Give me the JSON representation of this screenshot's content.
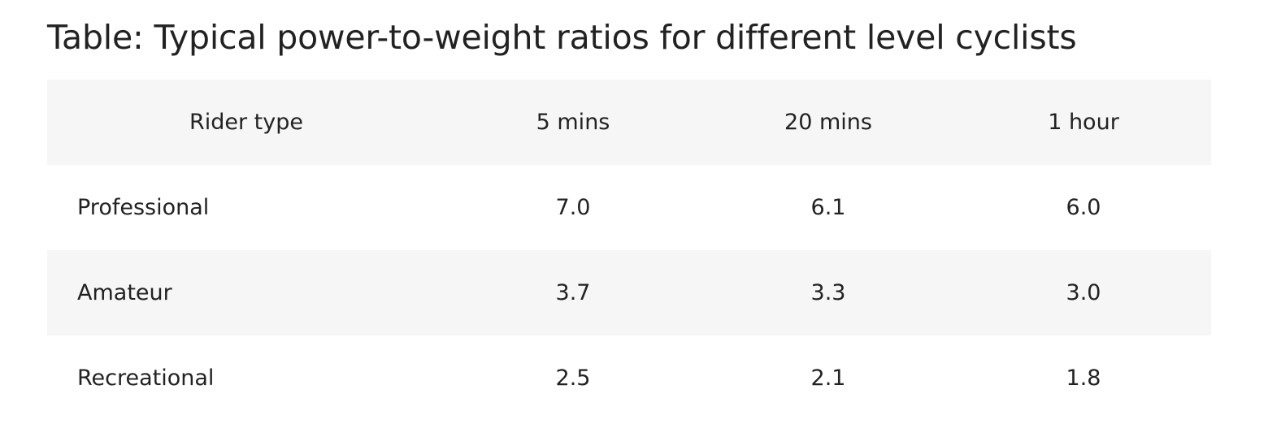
{
  "caption": "Table: Typical power-to-weight ratios for different level cyclists",
  "table": {
    "headers": [
      "Rider type",
      "5 mins",
      "20 mins",
      "1 hour"
    ],
    "rows": [
      [
        "Professional",
        "7.0",
        "6.1",
        "6.0"
      ],
      [
        "Amateur",
        "3.7",
        "3.3",
        "3.0"
      ],
      [
        "Recreational",
        "2.5",
        "2.1",
        "1.8"
      ]
    ]
  }
}
